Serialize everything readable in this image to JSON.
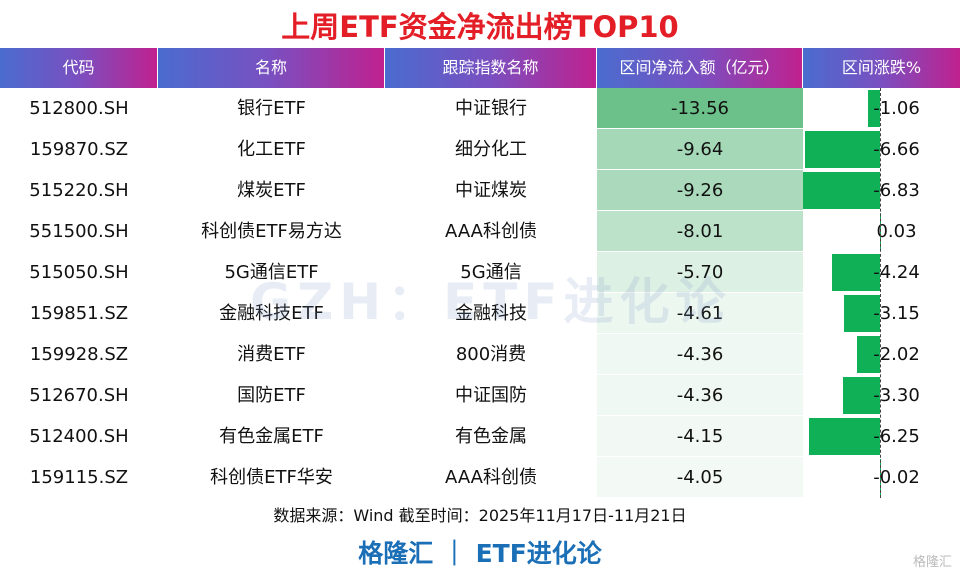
{
  "title": "上周ETF资金净流出榜TOP10",
  "headers": [
    "代码",
    "名称",
    "跟踪指数名称",
    "区间净流入额（亿元）",
    "区间涨跌%"
  ],
  "watermark": "GZH：ETF进化论",
  "source": "数据来源：Wind 截至时间：2025年11月17日-11月21日",
  "brand": "格隆汇 ｜ ETF进化论",
  "logo": "格隆汇",
  "colors": {
    "title": "#e41e26",
    "bar": "#10b057",
    "flow_max": "#6cc08a",
    "brand": "#1b6fb7"
  },
  "chart_data": {
    "type": "table",
    "title": "上周ETF资金净流出榜TOP10",
    "columns": [
      "代码",
      "名称",
      "跟踪指数名称",
      "区间净流入额（亿元）",
      "区间涨跌%"
    ],
    "rows": [
      {
        "code": "512800.SH",
        "name": "银行ETF",
        "index": "中证银行",
        "flow": "-13.56",
        "pct": "-1.06"
      },
      {
        "code": "159870.SZ",
        "name": "化工ETF",
        "index": "细分化工",
        "flow": "-9.64",
        "pct": "-6.66"
      },
      {
        "code": "515220.SH",
        "name": "煤炭ETF",
        "index": "中证煤炭",
        "flow": "-9.26",
        "pct": "-6.83"
      },
      {
        "code": "551500.SH",
        "name": "科创债ETF易方达",
        "index": "AAA科创债",
        "flow": "-8.01",
        "pct": "0.03"
      },
      {
        "code": "515050.SH",
        "name": "5G通信ETF",
        "index": "5G通信",
        "flow": "-5.70",
        "pct": "-4.24"
      },
      {
        "code": "159851.SZ",
        "name": "金融科技ETF",
        "index": "金融科技",
        "flow": "-4.61",
        "pct": "-3.15"
      },
      {
        "code": "159928.SZ",
        "name": "消费ETF",
        "index": "800消费",
        "flow": "-4.36",
        "pct": "-2.02"
      },
      {
        "code": "512670.SH",
        "name": "国防ETF",
        "index": "中证国防",
        "flow": "-4.36",
        "pct": "-3.30"
      },
      {
        "code": "512400.SH",
        "name": "有色金属ETF",
        "index": "有色金属",
        "flow": "-4.15",
        "pct": "-6.25"
      },
      {
        "code": "159115.SZ",
        "name": "科创债ETF华安",
        "index": "AAA科创债",
        "flow": "-4.05",
        "pct": "-0.02"
      }
    ]
  }
}
